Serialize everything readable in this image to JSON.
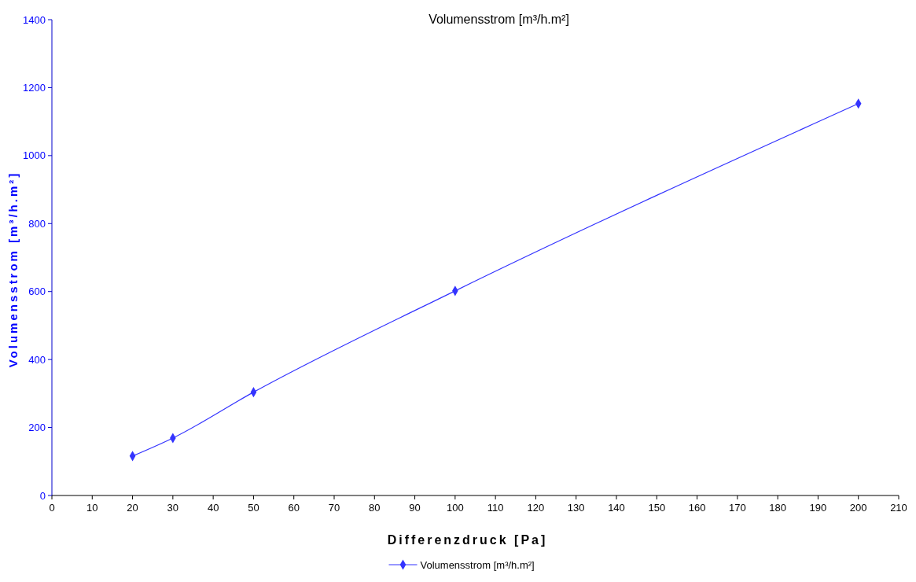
{
  "chart_data": {
    "type": "line",
    "title": "Volumensstrom  [m³/h.m²]",
    "xlabel": "Differenzdruck  [Pa]",
    "ylabel": "Volumensstrom  [m³/h.m²]",
    "x": [
      20,
      30,
      50,
      100,
      200
    ],
    "series": [
      {
        "name": "Volumensstrom [m³/h.m²]",
        "color": "#3333ff",
        "values": [
          116,
          169,
          304,
          602,
          1153
        ]
      }
    ],
    "xlim": [
      0,
      210
    ],
    "xticks": [
      0,
      10,
      20,
      30,
      40,
      50,
      60,
      70,
      80,
      90,
      100,
      110,
      120,
      130,
      140,
      150,
      160,
      170,
      180,
      190,
      200,
      210
    ],
    "ylim": [
      0,
      1400
    ],
    "yticks": [
      0,
      200,
      400,
      600,
      800,
      1000,
      1200,
      1400
    ],
    "grid": false,
    "legend": "bottom",
    "marker": "diamond",
    "line_style": "solid"
  }
}
